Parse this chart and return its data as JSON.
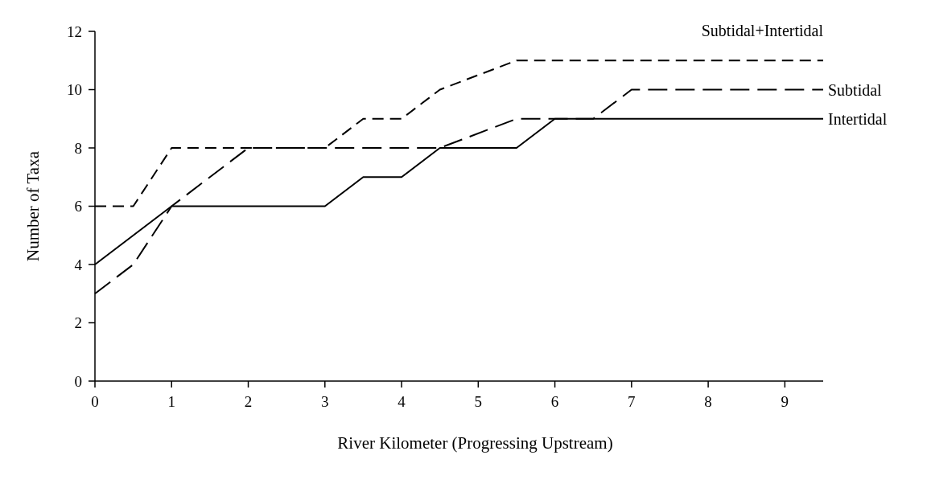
{
  "chart_data": {
    "type": "line",
    "xlabel": "River Kilometer (Progressing Upstream)",
    "ylabel": "Number of Taxa",
    "xlim": [
      0,
      9.5
    ],
    "xticks": [
      0,
      1,
      2,
      3,
      4,
      5,
      6,
      7,
      8,
      9
    ],
    "ylim": [
      0,
      12
    ],
    "yticks": [
      0,
      2,
      4,
      6,
      8,
      10,
      12
    ],
    "grid": false,
    "marker": "none",
    "series": [
      {
        "name": "Subtidal+Intertidal",
        "color": "#000000",
        "line_style": "dashed",
        "x": [
          0,
          0.5,
          1,
          3,
          3.5,
          4,
          4.5,
          5.5,
          9.5
        ],
        "values": [
          6,
          6,
          8,
          8,
          9,
          9,
          10,
          11,
          11
        ]
      },
      {
        "name": "Subtidal",
        "color": "#000000",
        "line_style": "dashed",
        "x": [
          0,
          0.5,
          1,
          2,
          4.5,
          5.5,
          6.5,
          7,
          9.5
        ],
        "values": [
          3,
          4,
          6,
          8,
          8,
          9,
          9,
          10,
          10
        ]
      },
      {
        "name": "Intertidal",
        "color": "#000000",
        "line_style": "solid",
        "x": [
          0,
          1,
          3,
          3.5,
          4,
          4.5,
          5.5,
          6,
          9.5
        ],
        "values": [
          4,
          6,
          6,
          7,
          7,
          8,
          8,
          9,
          9
        ]
      }
    ]
  }
}
